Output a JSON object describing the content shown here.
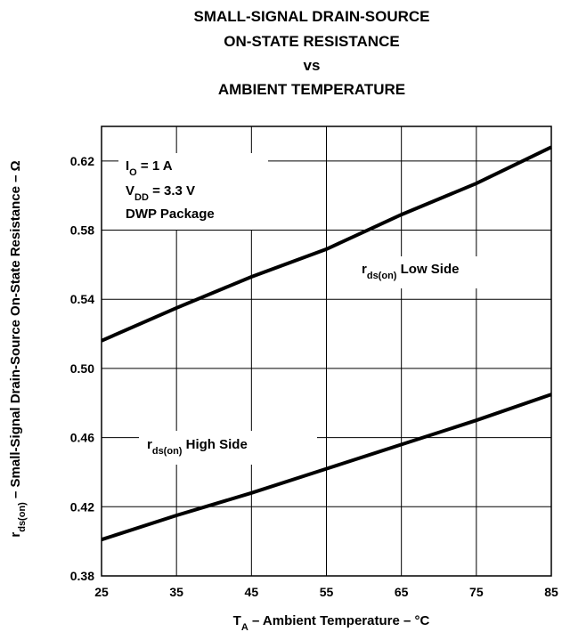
{
  "chart_data": {
    "type": "line",
    "title_lines": [
      "SMALL-SIGNAL DRAIN-SOURCE",
      "ON-STATE RESISTANCE",
      "vs",
      "AMBIENT TEMPERATURE"
    ],
    "xlabel": {
      "main": "T",
      "sub": "A",
      "rest": " – Ambient Temperature – °C"
    },
    "ylabel": {
      "main": "r",
      "sub": "ds(on)",
      "rest": " – Small-Signal Drain-Source On-State Resistance – Ω"
    },
    "xlim": [
      25,
      85
    ],
    "ylim": [
      0.38,
      0.64
    ],
    "x_ticks": [
      25,
      35,
      45,
      55,
      65,
      75,
      85
    ],
    "y_ticks": [
      "0.38",
      "0.42",
      "0.46",
      "0.50",
      "0.54",
      "0.58",
      "0.62"
    ],
    "grid": true,
    "conditions": [
      {
        "main": "I",
        "sub": "O",
        "rest": " = 1 A"
      },
      {
        "main": "V",
        "sub": "DD",
        "rest": " = 3.3 V"
      },
      {
        "main": "DWP Package",
        "sub": "",
        "rest": ""
      }
    ],
    "series": [
      {
        "label_main": "r",
        "label_sub": "ds(on)",
        "label_rest": " Low Side",
        "x": [
          25,
          35,
          45,
          55,
          65,
          75,
          85
        ],
        "y": [
          0.516,
          0.535,
          0.553,
          0.569,
          0.589,
          0.607,
          0.628
        ]
      },
      {
        "label_main": "r",
        "label_sub": "ds(on)",
        "label_rest": " High Side",
        "x": [
          25,
          35,
          45,
          55,
          65,
          75,
          85
        ],
        "y": [
          0.401,
          0.415,
          0.428,
          0.442,
          0.456,
          0.47,
          0.485
        ]
      }
    ]
  }
}
